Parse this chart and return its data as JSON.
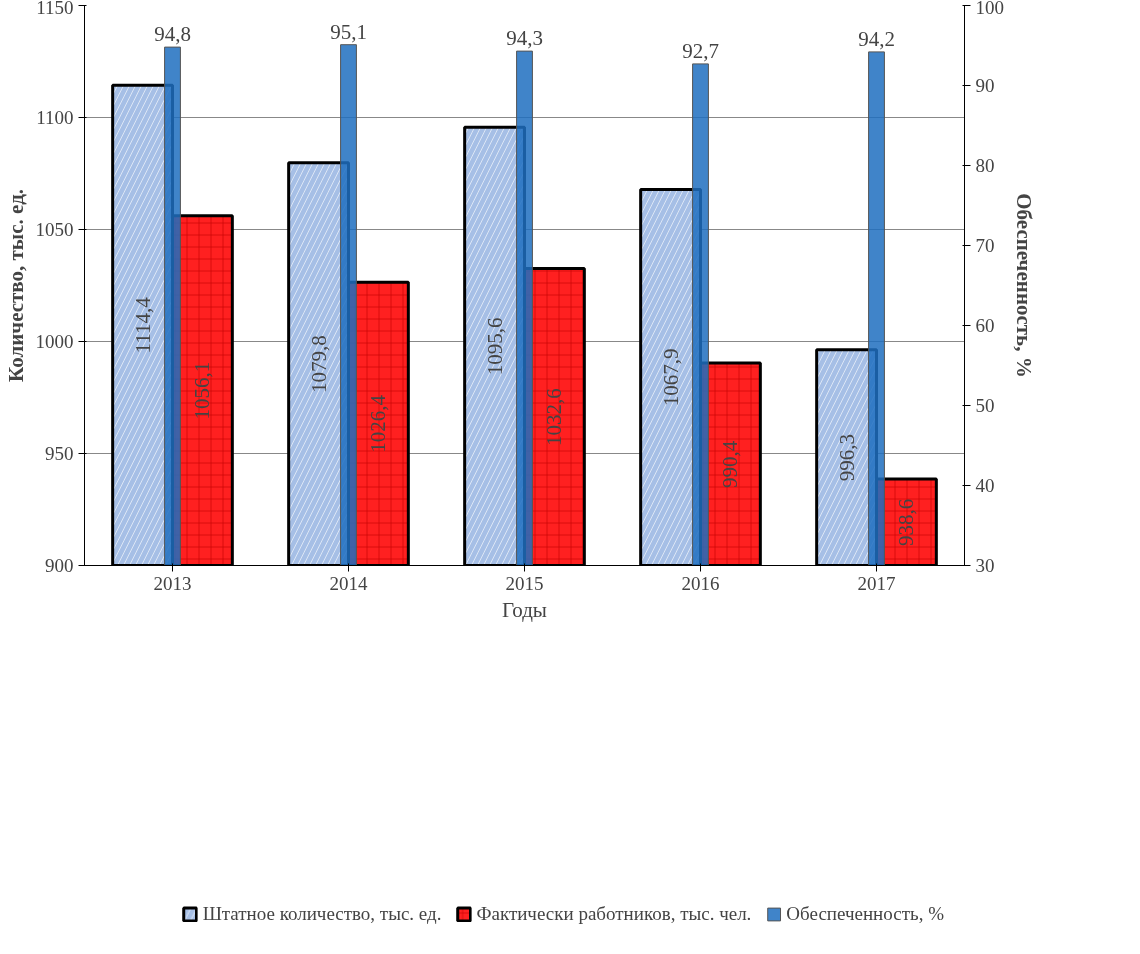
{
  "chart_data": {
    "type": "bar",
    "categories": [
      "2013",
      "2014",
      "2015",
      "2016",
      "2017"
    ],
    "xlabel": "Годы",
    "ylabel": "Количество, тыс. ед.",
    "y2label": "Обеспеченность, %",
    "series": [
      {
        "name": "Штатное количество, тыс. ед.",
        "color": "#a6bfe6",
        "values": [
          1114.4,
          1079.8,
          1095.6,
          1067.9,
          996.3
        ],
        "value_labels": [
          "1114,4",
          "1079,8",
          "1095,6",
          "1067,9",
          "996,3"
        ]
      },
      {
        "name": "Фактически работников, тыс. чел.",
        "color": "#ff2020",
        "values": [
          1056.1,
          1026.4,
          1032.6,
          990.4,
          938.6
        ],
        "value_labels": [
          "1056,1",
          "1026,4",
          "1032,6",
          "990,4",
          "938,6"
        ]
      },
      {
        "name": "Обеспеченность, %",
        "color": "#1f6fbf",
        "axis": "y2",
        "values": [
          94.8,
          95.1,
          94.3,
          92.7,
          94.2
        ],
        "value_labels": [
          "94,8",
          "95,1",
          "94,3",
          "92,7",
          "94,2"
        ]
      }
    ],
    "ylim": [
      900,
      1150
    ],
    "yticks": [
      900,
      950,
      1000,
      1050,
      1100,
      1150
    ],
    "y2lim": [
      30,
      100
    ],
    "y2ticks": [
      30,
      40,
      50,
      60,
      70,
      80,
      90,
      100
    ],
    "grid": "y",
    "legend": "bottom"
  }
}
